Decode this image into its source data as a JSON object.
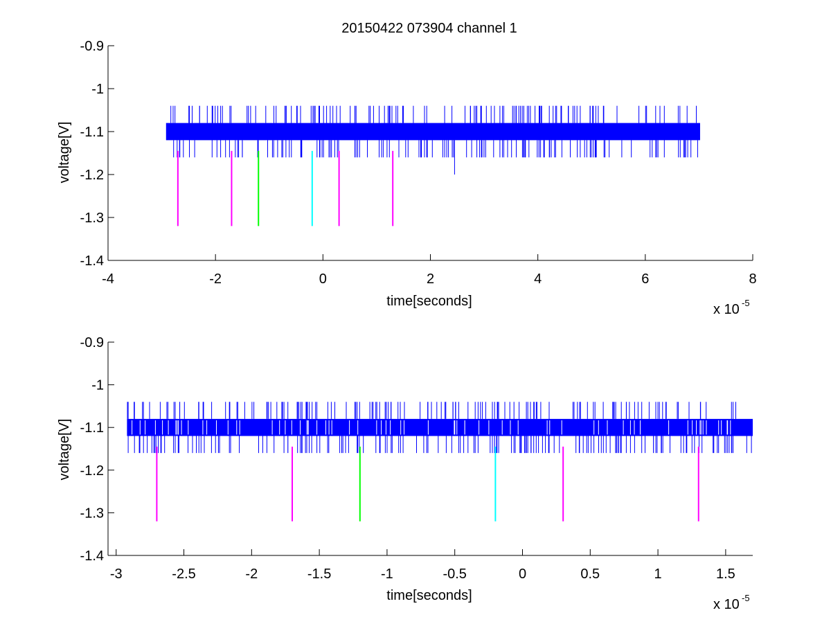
{
  "figure": {
    "title": "20150422 073904 channel 1"
  },
  "chart_data": [
    {
      "type": "line",
      "xlabel": "time[seconds]",
      "ylabel": "voltage[V]",
      "x_exponent_label": "x 10",
      "x_exponent": "-5",
      "xlim": [
        -4,
        8
      ],
      "ylim": [
        -1.4,
        -0.9
      ],
      "xticks": [
        -4,
        -2,
        0,
        2,
        4,
        6,
        8
      ],
      "xtick_labels": [
        "-4",
        "-2",
        "0",
        "2",
        "4",
        "6",
        "8"
      ],
      "yticks": [
        -0.9,
        -1,
        -1.1,
        -1.2,
        -1.3,
        -1.4
      ],
      "ytick_labels": [
        "-0.9",
        "-1",
        "-1.1",
        "-1.2",
        "-1.3",
        "-1.4"
      ],
      "grid": false,
      "signal": {
        "color": "#0000ff",
        "x_range": [
          -2.92,
          7.02
        ],
        "band": [
          -1.12,
          -1.08
        ],
        "spike_high": -1.04,
        "spike_low": -1.16,
        "extra_low": [
          {
            "x": 2.45,
            "y": -1.2
          }
        ]
      },
      "markers": [
        {
          "x": -2.7,
          "color": "#ff00ff",
          "y_top": -1.145,
          "y_bottom": -1.32
        },
        {
          "x": -1.7,
          "color": "#ff00ff",
          "y_top": -1.145,
          "y_bottom": -1.32
        },
        {
          "x": -1.2,
          "color": "#00ff00",
          "y_top": -1.145,
          "y_bottom": -1.32
        },
        {
          "x": -0.2,
          "color": "#00ffff",
          "y_top": -1.145,
          "y_bottom": -1.32
        },
        {
          "x": 0.3,
          "color": "#ff00ff",
          "y_top": -1.145,
          "y_bottom": -1.32
        },
        {
          "x": 1.3,
          "color": "#ff00ff",
          "y_top": -1.145,
          "y_bottom": -1.32
        }
      ]
    },
    {
      "type": "line",
      "xlabel": "time[seconds]",
      "ylabel": "voltage[V]",
      "x_exponent_label": "x 10",
      "x_exponent": "-5",
      "xlim": [
        -3.06,
        1.7
      ],
      "ylim": [
        -1.4,
        -0.9
      ],
      "xticks": [
        -3,
        -2.5,
        -2,
        -1.5,
        -1,
        -0.5,
        0,
        0.5,
        1,
        1.5
      ],
      "xtick_labels": [
        "-3",
        "-2.5",
        "-2",
        "-1.5",
        "-1",
        "-0.5",
        "0",
        "0.5",
        "1",
        "1.5"
      ],
      "yticks": [
        -0.9,
        -1,
        -1.1,
        -1.2,
        -1.3,
        -1.4
      ],
      "ytick_labels": [
        "-0.9",
        "-1",
        "-1.1",
        "-1.2",
        "-1.3",
        "-1.4"
      ],
      "grid": false,
      "signal": {
        "color": "#0000ff",
        "x_range": [
          -2.92,
          1.7
        ],
        "band": [
          -1.12,
          -1.08
        ],
        "spike_high": -1.04,
        "spike_low": -1.16,
        "extra_low": []
      },
      "markers": [
        {
          "x": -2.7,
          "color": "#ff00ff",
          "y_top": -1.145,
          "y_bottom": -1.32
        },
        {
          "x": -1.7,
          "color": "#ff00ff",
          "y_top": -1.145,
          "y_bottom": -1.32
        },
        {
          "x": -1.2,
          "color": "#00ff00",
          "y_top": -1.145,
          "y_bottom": -1.32
        },
        {
          "x": -0.2,
          "color": "#00ffff",
          "y_top": -1.145,
          "y_bottom": -1.32
        },
        {
          "x": 0.3,
          "color": "#ff00ff",
          "y_top": -1.145,
          "y_bottom": -1.32
        },
        {
          "x": 1.3,
          "color": "#ff00ff",
          "y_top": -1.145,
          "y_bottom": -1.32
        }
      ]
    }
  ]
}
